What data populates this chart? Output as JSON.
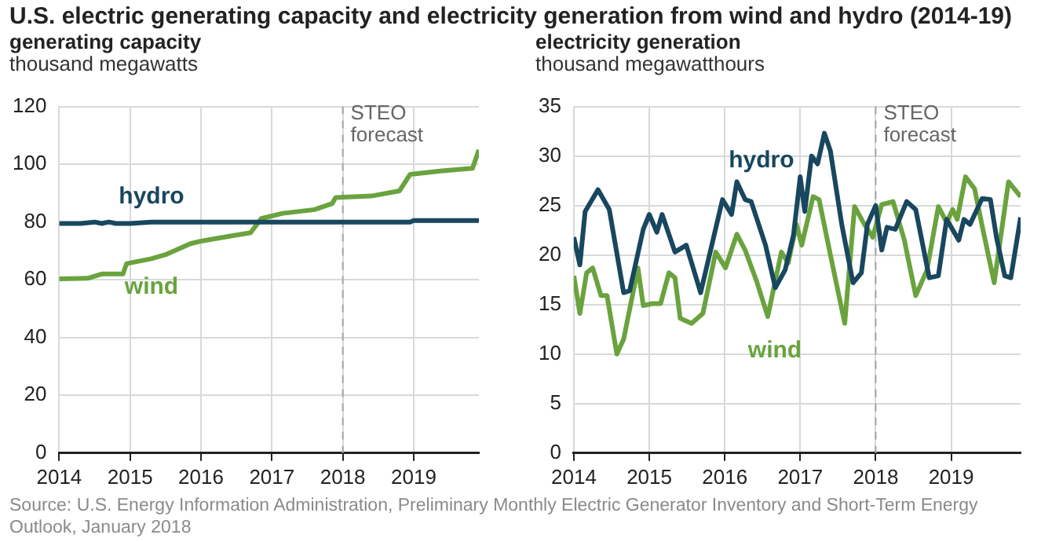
{
  "chart_data": [
    {
      "type": "line",
      "title": "U.S. electric generating capacity and electricity generation from wind and hydro (2014-19)",
      "subtitle": "generating capacity",
      "ylabel": "thousand megawatts",
      "annotations": [
        "Source: U.S. Energy Information Administration, Preliminary Monthly Electric Generator Inventory and Short-Term Energy Outlook, January 2018"
      ],
      "xlim": [
        2014,
        2019.92
      ],
      "xticks": [
        2014,
        2015,
        2016,
        2017,
        2018,
        2019
      ],
      "ylim": [
        0,
        120
      ],
      "yticks": [
        0,
        20,
        40,
        60,
        80,
        100,
        120
      ],
      "grid": true,
      "legend": false,
      "ref_lines": [
        {
          "axis": "x",
          "value": 2018,
          "label": "STEO forecast",
          "color": "#a6a6a6",
          "line_style": "dashed"
        }
      ],
      "series": [
        {
          "name": "hydro",
          "color": "#18475f",
          "x": [
            2014,
            2014.3,
            2014.5,
            2014.6,
            2014.7,
            2014.8,
            2015.0,
            2015.3,
            2016.0,
            2017.0,
            2018.0,
            2018.95,
            2019.0,
            2019.92
          ],
          "values": [
            79.5,
            79.5,
            80,
            79.5,
            80,
            79.5,
            79.5,
            80,
            80,
            80,
            80,
            80,
            80.5,
            80.5
          ]
        },
        {
          "name": "wind",
          "color": "#6aa33e",
          "x": [
            2014,
            2014.4,
            2014.6,
            2014.9,
            2014.95,
            2015.3,
            2015.5,
            2015.85,
            2016.0,
            2016.4,
            2016.7,
            2016.85,
            2017.15,
            2017.6,
            2017.85,
            2017.9,
            2018.4,
            2018.8,
            2018.95,
            2019.4,
            2019.83,
            2019.92
          ],
          "values": [
            60.3,
            60.5,
            62,
            62,
            65.6,
            67.3,
            68.7,
            72.5,
            73.4,
            75.1,
            76.3,
            81.2,
            83,
            84.3,
            86.4,
            88.5,
            89,
            90.8,
            96.5,
            97.7,
            98.6,
            105
          ]
        }
      ]
    },
    {
      "type": "line",
      "subtitle": "electricity generation",
      "ylabel": "thousand megawatthours",
      "xlim": [
        2014,
        2019.92
      ],
      "xticks": [
        2014,
        2015,
        2016,
        2017,
        2018,
        2019
      ],
      "ylim": [
        0,
        35
      ],
      "yticks": [
        0,
        5,
        10,
        15,
        20,
        25,
        30,
        35
      ],
      "grid": true,
      "legend": false,
      "ref_lines": [
        {
          "axis": "x",
          "value": 2018,
          "label": "STEO forecast",
          "color": "#a6a6a6",
          "line_style": "dashed"
        }
      ],
      "series": [
        {
          "name": "hydro",
          "color": "#18475f",
          "x": [
            2014.0,
            2014.08,
            2014.15,
            2014.32,
            2014.47,
            2014.66,
            2014.74,
            2014.92,
            2015.0,
            2015.1,
            2015.17,
            2015.34,
            2015.49,
            2015.68,
            2015.97,
            2016.09,
            2016.16,
            2016.27,
            2016.35,
            2016.54,
            2016.67,
            2016.8,
            2016.91,
            2017.0,
            2017.06,
            2017.15,
            2017.23,
            2017.32,
            2017.4,
            2017.55,
            2017.7,
            2017.81,
            2017.89,
            2018.0,
            2018.08,
            2018.15,
            2018.26,
            2018.41,
            2018.53,
            2018.71,
            2018.83,
            2018.94,
            2019.1,
            2019.17,
            2019.25,
            2019.41,
            2019.52,
            2019.6,
            2019.71,
            2019.79,
            2019.92
          ],
          "values": [
            21.8,
            19,
            24.4,
            26.6,
            24.6,
            16.2,
            16.4,
            22.6,
            24.1,
            22.3,
            24.1,
            20.3,
            21,
            16.2,
            25.6,
            24.1,
            27.4,
            25.6,
            25.4,
            21,
            16.7,
            18.5,
            22,
            27.9,
            24.4,
            30,
            29.2,
            32.3,
            30.5,
            23.1,
            17.2,
            18.2,
            23.1,
            25,
            20.5,
            22.8,
            22.6,
            25.4,
            24.6,
            17.7,
            17.9,
            23.6,
            21.5,
            23.6,
            23.1,
            25.7,
            25.6,
            21.8,
            17.9,
            17.7,
            23.8
          ]
        },
        {
          "name": "wind",
          "color": "#6aa33e",
          "x": [
            2014.0,
            2014.08,
            2014.17,
            2014.25,
            2014.36,
            2014.44,
            2014.57,
            2014.66,
            2014.85,
            2014.92,
            2015.04,
            2015.15,
            2015.26,
            2015.34,
            2015.41,
            2015.56,
            2015.71,
            2015.88,
            2016.01,
            2016.16,
            2016.27,
            2016.42,
            2016.57,
            2016.75,
            2016.84,
            2016.95,
            2017.02,
            2017.17,
            2017.25,
            2017.4,
            2017.59,
            2017.72,
            2017.85,
            2017.96,
            2018.08,
            2018.23,
            2018.38,
            2018.53,
            2018.68,
            2018.83,
            2018.94,
            2019.02,
            2019.08,
            2019.19,
            2019.31,
            2019.42,
            2019.57,
            2019.76,
            2019.92
          ],
          "values": [
            17.9,
            14.1,
            18.2,
            18.7,
            15.9,
            15.9,
            10,
            11.5,
            18.7,
            14.9,
            15.1,
            15.1,
            18.2,
            17.7,
            13.6,
            13.1,
            14.1,
            20.3,
            18.7,
            22.1,
            20.5,
            17.4,
            13.8,
            20.3,
            19.2,
            23.1,
            21,
            25.9,
            25.6,
            20,
            13.1,
            24.9,
            23.1,
            21.8,
            25.1,
            25.4,
            21.5,
            15.9,
            18.5,
            24.9,
            23.3,
            24.6,
            23.6,
            27.9,
            26.7,
            22.6,
            17.2,
            27.4,
            25.9
          ]
        }
      ]
    }
  ]
}
